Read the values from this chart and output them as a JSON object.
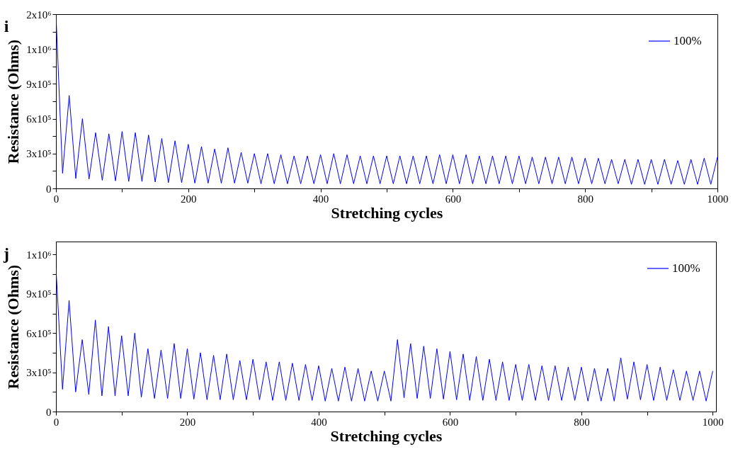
{
  "chart_data": [
    {
      "type": "line",
      "annotations": [
        "i"
      ],
      "xlabel": "Stretching cycles",
      "ylabel": "Resistance (Ohms)",
      "legend": "top right",
      "grid": false,
      "xlim": [
        0,
        1000
      ],
      "ylim": [
        0,
        1500000
      ],
      "xticks": [
        0,
        {
          "value": 100,
          "label": null
        },
        200,
        {
          "value": 300,
          "label": null
        },
        400,
        {
          "value": 500,
          "label": null
        },
        600,
        {
          "value": 700,
          "label": null
        },
        800,
        {
          "value": 900,
          "label": null
        },
        1000
      ],
      "yticks": [
        0,
        {
          "value": 150000,
          "label": null
        },
        {
          "value": 300000,
          "label": "3x10⁵"
        },
        {
          "value": 450000,
          "label": null
        },
        {
          "value": 600000,
          "label": "6x10⁵"
        },
        {
          "value": 750000,
          "label": null
        },
        {
          "value": 900000,
          "label": "9x10⁵"
        },
        {
          "value": 1050000,
          "label": null
        },
        {
          "value": 1200000,
          "label": "1x10⁶"
        },
        {
          "value": 1350000,
          "label": null
        },
        {
          "value": 1500000,
          "label": "2x10⁶"
        }
      ],
      "x": [
        0,
        10,
        20,
        30,
        40,
        50,
        60,
        70,
        80,
        90,
        100,
        110,
        120,
        130,
        140,
        150,
        160,
        170,
        180,
        190,
        200,
        210,
        220,
        230,
        240,
        250,
        260,
        270,
        280,
        290,
        300,
        310,
        320,
        330,
        340,
        350,
        360,
        370,
        380,
        390,
        400,
        410,
        420,
        430,
        440,
        450,
        460,
        470,
        480,
        490,
        500,
        510,
        520,
        530,
        540,
        550,
        560,
        570,
        580,
        590,
        600,
        610,
        620,
        630,
        640,
        650,
        660,
        670,
        680,
        690,
        700,
        710,
        720,
        730,
        740,
        750,
        760,
        770,
        780,
        790,
        800,
        810,
        820,
        830,
        840,
        850,
        860,
        870,
        880,
        890,
        900,
        910,
        920,
        930,
        940,
        950,
        960,
        970,
        980,
        990,
        1000
      ],
      "series": [
        {
          "name": "100%",
          "color": "#0000ff",
          "values": [
            1500000,
            130000,
            800000,
            85000,
            600000,
            80000,
            480000,
            70000,
            470000,
            65000,
            490000,
            60000,
            480000,
            60000,
            460000,
            55000,
            430000,
            50000,
            410000,
            50000,
            380000,
            45000,
            360000,
            45000,
            340000,
            45000,
            350000,
            45000,
            310000,
            45000,
            300000,
            40000,
            300000,
            40000,
            290000,
            40000,
            280000,
            40000,
            280000,
            40000,
            290000,
            40000,
            300000,
            40000,
            290000,
            40000,
            280000,
            40000,
            280000,
            40000,
            280000,
            40000,
            280000,
            40000,
            280000,
            40000,
            280000,
            40000,
            290000,
            40000,
            290000,
            40000,
            290000,
            40000,
            280000,
            40000,
            280000,
            40000,
            280000,
            40000,
            280000,
            40000,
            270000,
            40000,
            270000,
            40000,
            270000,
            40000,
            270000,
            40000,
            260000,
            40000,
            260000,
            40000,
            250000,
            40000,
            250000,
            35000,
            250000,
            35000,
            250000,
            35000,
            250000,
            35000,
            240000,
            35000,
            250000,
            35000,
            260000,
            35000,
            270000
          ]
        }
      ]
    },
    {
      "type": "line",
      "annotations": [
        "j"
      ],
      "xlabel": "Stretching cycles",
      "ylabel": "Resistance (Ohms)",
      "legend": "top right",
      "grid": false,
      "xlim": [
        0,
        1005
      ],
      "ylim": [
        0,
        1300000
      ],
      "xticks": [
        0,
        {
          "value": 100,
          "label": null
        },
        200,
        {
          "value": 300,
          "label": null
        },
        400,
        {
          "value": 500,
          "label": null
        },
        600,
        {
          "value": 700,
          "label": null
        },
        800,
        {
          "value": 900,
          "label": null
        },
        1000
      ],
      "yticks": [
        0,
        {
          "value": 150000,
          "label": null
        },
        {
          "value": 300000,
          "label": "3x10⁵"
        },
        {
          "value": 450000,
          "label": null
        },
        {
          "value": 600000,
          "label": "6x10⁵"
        },
        {
          "value": 750000,
          "label": null
        },
        {
          "value": 900000,
          "label": "9x10⁵"
        },
        {
          "value": 1050000,
          "label": null
        },
        {
          "value": 1200000,
          "label": "1x10⁶"
        }
      ],
      "x": [
        0,
        10,
        20,
        30,
        40,
        50,
        60,
        70,
        80,
        90,
        100,
        110,
        120,
        130,
        140,
        150,
        160,
        170,
        180,
        190,
        200,
        210,
        220,
        230,
        240,
        250,
        260,
        270,
        280,
        290,
        300,
        310,
        320,
        330,
        340,
        350,
        360,
        370,
        380,
        390,
        400,
        410,
        420,
        430,
        440,
        450,
        460,
        470,
        480,
        490,
        500,
        510,
        520,
        530,
        540,
        550,
        560,
        570,
        580,
        590,
        600,
        610,
        620,
        630,
        640,
        650,
        660,
        670,
        680,
        690,
        700,
        710,
        720,
        730,
        740,
        750,
        760,
        770,
        780,
        790,
        800,
        810,
        820,
        830,
        840,
        850,
        860,
        870,
        880,
        890,
        900,
        910,
        920,
        930,
        940,
        950,
        960,
        970,
        980,
        990,
        1000
      ],
      "series": [
        {
          "name": "100%",
          "color": "#0000ff",
          "values": [
            1100000,
            170000,
            850000,
            150000,
            550000,
            130000,
            700000,
            120000,
            650000,
            120000,
            580000,
            120000,
            600000,
            110000,
            480000,
            100000,
            470000,
            100000,
            520000,
            100000,
            480000,
            95000,
            450000,
            90000,
            430000,
            90000,
            440000,
            90000,
            390000,
            90000,
            400000,
            90000,
            380000,
            85000,
            380000,
            85000,
            370000,
            85000,
            360000,
            85000,
            350000,
            80000,
            330000,
            80000,
            340000,
            80000,
            330000,
            80000,
            310000,
            80000,
            310000,
            80000,
            550000,
            105000,
            520000,
            100000,
            500000,
            100000,
            480000,
            95000,
            460000,
            90000,
            440000,
            85000,
            420000,
            85000,
            400000,
            85000,
            380000,
            85000,
            360000,
            85000,
            360000,
            85000,
            350000,
            85000,
            350000,
            85000,
            340000,
            85000,
            340000,
            80000,
            330000,
            80000,
            330000,
            80000,
            410000,
            95000,
            380000,
            90000,
            360000,
            85000,
            340000,
            85000,
            320000,
            85000,
            310000,
            85000,
            310000,
            80000,
            310000
          ]
        }
      ]
    }
  ]
}
